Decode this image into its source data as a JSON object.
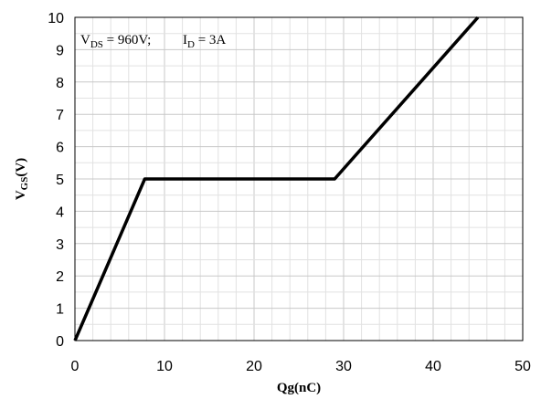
{
  "chart_data": {
    "type": "line",
    "title": "",
    "xlabel": "Qg(nC)",
    "ylabel": {
      "main": "V",
      "sub": "GS",
      "rest": "(V)"
    },
    "xlim": [
      0,
      50
    ],
    "ylim": [
      0,
      10
    ],
    "x_ticks": [
      "0",
      "10",
      "20",
      "30",
      "40",
      "50"
    ],
    "y_ticks": [
      "0",
      "1",
      "2",
      "3",
      "4",
      "5",
      "6",
      "7",
      "8",
      "9",
      "10"
    ],
    "grid": true,
    "annotation": {
      "vds_main": "V",
      "vds_sub": "DS",
      "vds_rest": " = 960V;",
      "id_main": "I",
      "id_sub": "D",
      "id_rest": " = 3A"
    },
    "series": [
      {
        "x": [
          0,
          7.8,
          29.0,
          45.0
        ],
        "y": [
          0,
          5,
          5,
          10
        ],
        "color": "#000000"
      }
    ]
  }
}
